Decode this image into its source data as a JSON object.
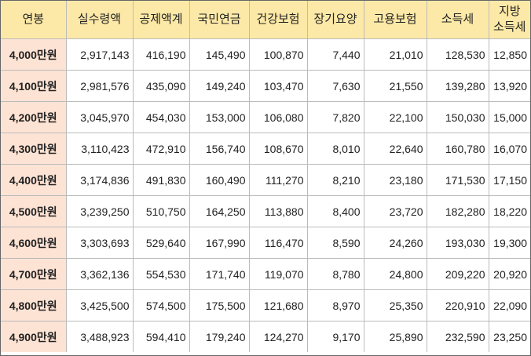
{
  "table": {
    "headers": [
      "연봉",
      "실수령액",
      "공제액계",
      "국민연금",
      "건강보험",
      "장기요양",
      "고용보험",
      "소득세",
      "지방\n소득세"
    ],
    "rows": [
      [
        "4,000만원",
        "2,917,143",
        "416,190",
        "145,490",
        "100,870",
        "7,440",
        "21,010",
        "128,530",
        "12,850"
      ],
      [
        "4,100만원",
        "2,981,576",
        "435,090",
        "149,240",
        "103,470",
        "7,630",
        "21,550",
        "139,280",
        "13,920"
      ],
      [
        "4,200만원",
        "3,045,970",
        "454,030",
        "153,000",
        "106,080",
        "7,820",
        "22,100",
        "150,030",
        "15,000"
      ],
      [
        "4,300만원",
        "3,110,423",
        "472,910",
        "156,740",
        "108,670",
        "8,010",
        "22,640",
        "160,780",
        "16,070"
      ],
      [
        "4,400만원",
        "3,174,836",
        "491,830",
        "160,490",
        "111,270",
        "8,210",
        "23,180",
        "171,530",
        "17,150"
      ],
      [
        "4,500만원",
        "3,239,250",
        "510,750",
        "164,250",
        "113,880",
        "8,400",
        "23,720",
        "182,280",
        "18,220"
      ],
      [
        "4,600만원",
        "3,303,693",
        "529,640",
        "167,990",
        "116,470",
        "8,590",
        "24,260",
        "193,030",
        "19,300"
      ],
      [
        "4,700만원",
        "3,362,136",
        "554,530",
        "171,740",
        "119,070",
        "8,780",
        "24,800",
        "209,220",
        "20,920"
      ],
      [
        "4,800만원",
        "3,425,500",
        "574,500",
        "175,500",
        "121,680",
        "8,970",
        "25,350",
        "220,910",
        "22,090"
      ],
      [
        "4,900만원",
        "3,488,923",
        "594,410",
        "179,240",
        "124,270",
        "9,170",
        "25,890",
        "232,590",
        "23,250"
      ]
    ]
  },
  "colors": {
    "header_bg": "#fde9a7",
    "salary_bg": "#fde3d4",
    "border": "#bbbbbb"
  }
}
